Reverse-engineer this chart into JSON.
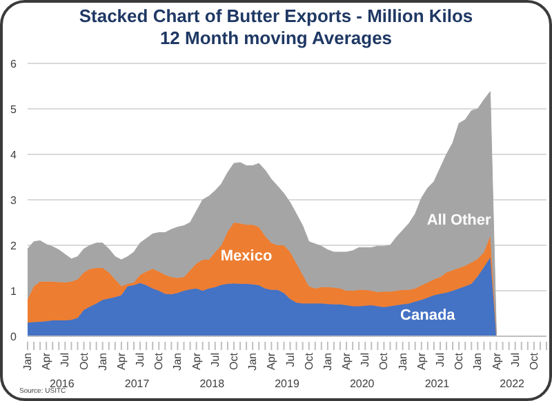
{
  "chart_data": {
    "type": "area",
    "stacked": true,
    "title": "Stacked Chart of Butter Exports - Million Kilos",
    "subtitle": "12 Month moving Averages",
    "categories": [
      "Jan",
      null,
      null,
      "Apr",
      null,
      null,
      "Jul",
      null,
      null,
      "Oct",
      null,
      null,
      "Jan",
      null,
      null,
      "Apr",
      null,
      null,
      "Jul",
      null,
      null,
      "Oct",
      null,
      null,
      "Jan",
      null,
      null,
      "Apr",
      null,
      null,
      "Jul",
      null,
      null,
      "Oct",
      null,
      null,
      "Jan",
      null,
      null,
      "Apr",
      null,
      null,
      "Jul",
      null,
      null,
      "Oct",
      null,
      null,
      "Jan",
      null,
      null,
      "Apr",
      null,
      null,
      "Jul",
      null,
      null,
      "Oct",
      null,
      null,
      "Jan",
      null,
      null,
      "Apr",
      null,
      null,
      "Jul",
      null,
      null,
      "Oct",
      null,
      null,
      "Jan",
      null,
      null,
      "Apr",
      null,
      null,
      "Jul",
      null,
      null,
      "Oct",
      null,
      null
    ],
    "series": [
      {
        "name": "Canada",
        "color": "#4472c4",
        "values": [
          0.3,
          0.31,
          0.32,
          0.33,
          0.35,
          0.35,
          0.35,
          0.36,
          0.4,
          0.58,
          0.65,
          0.72,
          0.8,
          0.83,
          0.86,
          0.9,
          1.1,
          1.12,
          1.17,
          1.12,
          1.05,
          1.0,
          0.93,
          0.92,
          0.95,
          1.0,
          1.03,
          1.05,
          1.0,
          1.05,
          1.08,
          1.13,
          1.15,
          1.16,
          1.15,
          1.15,
          1.14,
          1.12,
          1.05,
          1.02,
          1.02,
          0.95,
          0.82,
          0.74,
          0.72,
          0.72,
          0.72,
          0.72,
          0.71,
          0.7,
          0.7,
          0.68,
          0.66,
          0.66,
          0.67,
          0.68,
          0.66,
          0.64,
          0.66,
          0.68,
          0.7,
          0.72,
          0.76,
          0.8,
          0.85,
          0.9,
          0.93,
          0.96,
          1.0,
          1.05,
          1.1,
          1.15,
          1.32,
          1.52,
          1.73,
          0,
          null,
          null,
          null,
          null,
          null,
          null,
          null,
          null
        ]
      },
      {
        "name": "Mexico",
        "color": "#ed7d31",
        "values": [
          0.51,
          0.79,
          0.88,
          0.87,
          0.85,
          0.84,
          0.83,
          0.84,
          0.85,
          0.82,
          0.83,
          0.78,
          0.7,
          0.57,
          0.39,
          0.2,
          0.05,
          0.06,
          0.18,
          0.3,
          0.43,
          0.42,
          0.42,
          0.38,
          0.33,
          0.3,
          0.42,
          0.55,
          0.68,
          0.63,
          0.77,
          0.87,
          1.15,
          1.34,
          1.33,
          1.3,
          1.31,
          1.28,
          1.15,
          1.03,
          0.98,
          1.05,
          1.03,
          0.86,
          0.63,
          0.38,
          0.33,
          0.36,
          0.37,
          0.37,
          0.35,
          0.32,
          0.34,
          0.36,
          0.35,
          0.32,
          0.31,
          0.34,
          0.32,
          0.32,
          0.32,
          0.3,
          0.29,
          0.32,
          0.33,
          0.35,
          0.37,
          0.44,
          0.45,
          0.45,
          0.45,
          0.47,
          0.38,
          0.33,
          0.47,
          0,
          null,
          null,
          null,
          null,
          null,
          null,
          null,
          null
        ]
      },
      {
        "name": "All Other",
        "color": "#a5a5a5",
        "values": [
          1.11,
          0.98,
          0.9,
          0.82,
          0.77,
          0.71,
          0.62,
          0.5,
          0.5,
          0.52,
          0.52,
          0.55,
          0.55,
          0.52,
          0.5,
          0.58,
          0.6,
          0.67,
          0.7,
          0.73,
          0.77,
          0.86,
          0.93,
          1.05,
          1.12,
          1.13,
          1.05,
          1.15,
          1.32,
          1.4,
          1.35,
          1.35,
          1.3,
          1.3,
          1.34,
          1.3,
          1.3,
          1.4,
          1.45,
          1.4,
          1.3,
          1.14,
          1.09,
          1.09,
          1.08,
          0.98,
          0.98,
          0.9,
          0.82,
          0.78,
          0.8,
          0.85,
          0.88,
          0.93,
          0.93,
          0.95,
          1.01,
          1.0,
          1.02,
          1.18,
          1.31,
          1.46,
          1.64,
          1.92,
          2.08,
          2.15,
          2.4,
          2.6,
          2.8,
          3.18,
          3.21,
          3.34,
          3.3,
          3.35,
          3.18,
          0,
          null,
          null,
          null,
          null,
          null,
          null,
          null,
          null
        ]
      }
    ],
    "ylim": [
      0,
      6
    ],
    "yticks": [
      0,
      1,
      2,
      3,
      4,
      5,
      6
    ],
    "grid": "y",
    "legend": false,
    "annotations": [
      "2016",
      "2017",
      "2018",
      "2019",
      "2020",
      "2021",
      "2022",
      "Source: USITC"
    ]
  }
}
